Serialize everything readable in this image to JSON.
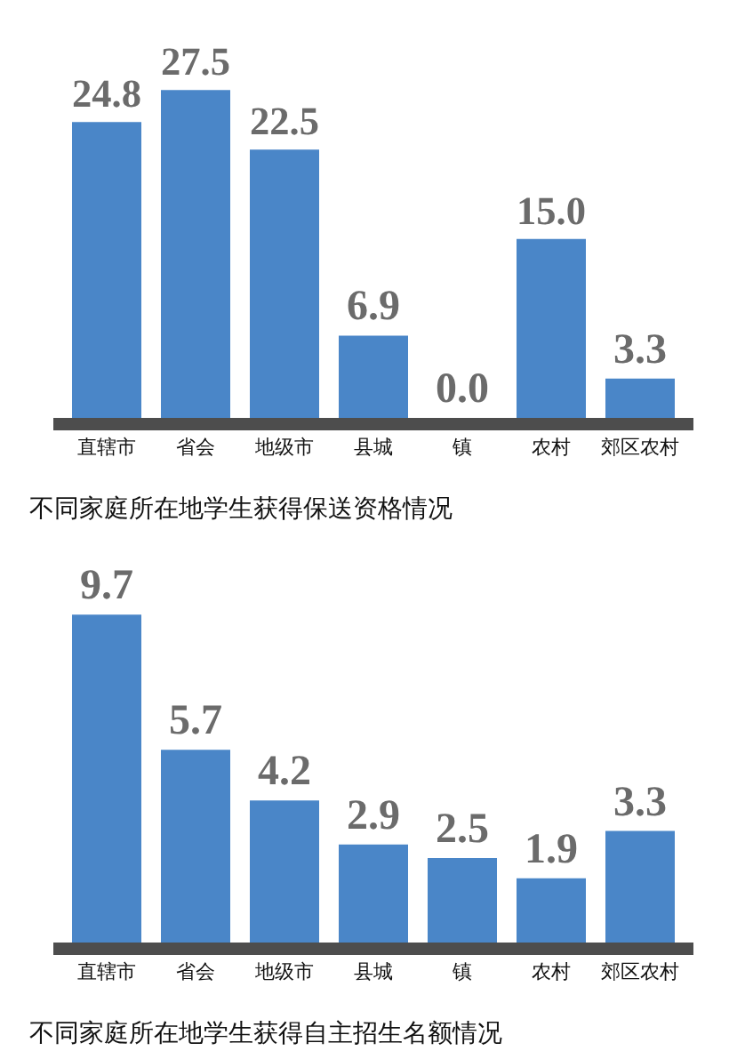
{
  "chart_data": [
    {
      "type": "bar",
      "title": "不同家庭所在地学生获得保送资格情况",
      "categories": [
        "直辖市",
        "省会",
        "地级市",
        "县城",
        "镇",
        "农村",
        "郊区农村"
      ],
      "values": [
        24.8,
        27.5,
        22.5,
        6.9,
        0.0,
        15.0,
        3.3
      ],
      "value_labels": [
        "24.8",
        "27.5",
        "22.5",
        "6.9",
        "0.0",
        "15.0",
        "3.3"
      ],
      "color": "#4a86c8",
      "tick_labels": "x",
      "grid": false,
      "legend": false
    },
    {
      "type": "bar",
      "title": "不同家庭所在地学生获得自主招生名额情况",
      "categories": [
        "直辖市",
        "省会",
        "地级市",
        "县城",
        "镇",
        "农村",
        "郊区农村"
      ],
      "values": [
        9.7,
        5.7,
        4.2,
        2.9,
        2.5,
        1.9,
        3.3
      ],
      "value_labels": [
        "9.7",
        "5.7",
        "4.2",
        "2.9",
        "2.5",
        "1.9",
        "3.3"
      ],
      "color": "#4a86c8",
      "tick_labels": "x",
      "grid": false,
      "legend": false
    }
  ]
}
